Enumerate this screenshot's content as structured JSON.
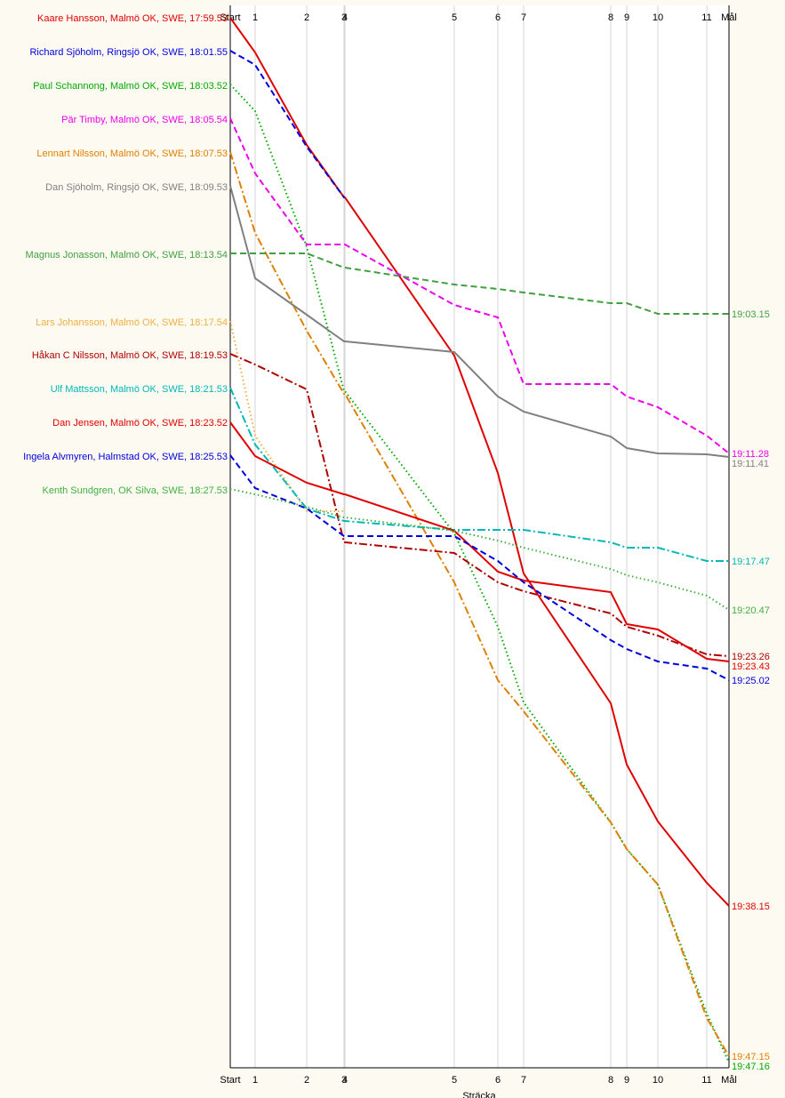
{
  "chart_data": {
    "type": "line",
    "xlabel": "Sträcka",
    "x_ticks": [
      "Start",
      "1",
      "2",
      "3",
      "4",
      "5",
      "6",
      "7",
      "8",
      "9",
      "10",
      "11",
      "Mål"
    ],
    "grid": "vertical",
    "legend": "left",
    "series": [
      {
        "name": "Kaare Hansson, Malmö OK, SWE, 17:59.53",
        "color": "#e00000",
        "dash": "solid",
        "end_label": "19:38.15",
        "y": [
          20,
          59,
          163,
          222,
          222,
          400,
          532,
          645,
          791,
          860,
          924,
          993,
          1019
        ]
      },
      {
        "name": "Richard Sjöholm, Ringsjö OK, SWE, 18:01.55",
        "color": "#0000dd",
        "dash": "dashed",
        "end_label": "",
        "y": [
          57,
          73,
          165,
          222,
          222,
          null,
          null,
          null,
          null,
          null,
          null,
          null,
          null
        ]
      },
      {
        "name": "Paul Schannong, Malmö OK, SWE, 18:03.52",
        "color": "#00aa00",
        "dash": "dotted",
        "end_label": "19:47.16",
        "y": [
          95,
          125,
          278,
          440,
          440,
          600,
          705,
          790,
          925,
          955,
          995,
          1140,
          1195
        ]
      },
      {
        "name": "Pär Timby, Malmö OK, SWE, 18:05.54",
        "color": "#ee00ee",
        "dash": "dashed",
        "end_label": "19:11.28",
        "y": [
          133,
          195,
          275,
          275,
          275,
          343,
          357,
          432,
          432,
          446,
          458,
          490,
          510
        ]
      },
      {
        "name": "Lennart Nilsson, Malmö OK, SWE, 18:07.53",
        "color": "#e08000",
        "dash": "dashdot",
        "end_label": "19:47.15",
        "y": [
          171,
          262,
          372,
          443,
          443,
          655,
          765,
          800,
          925,
          955,
          995,
          1145,
          1188
        ]
      },
      {
        "name": "Dan Sjöholm, Ringsjö OK, SWE, 18:09.53",
        "color": "#808080",
        "dash": "solid",
        "end_label": "19:11.41",
        "y": [
          209,
          313,
          354,
          384,
          384,
          396,
          446,
          463,
          491,
          504,
          510,
          511,
          514
        ]
      },
      {
        "name": "Magnus Jonasson, Malmö OK, SWE, 18:13.54",
        "color": "#40a040",
        "dash": "dashed",
        "end_label": "19:03.15",
        "y": [
          285,
          285,
          285,
          301,
          301,
          320,
          325,
          329,
          341,
          341,
          353,
          353,
          353
        ]
      },
      {
        "name": "Lars Johansson, Malmö OK, SWE, 18:17.54",
        "color": "#f0b040",
        "dash": "dotted",
        "end_label": "",
        "y": [
          361,
          490,
          575,
          575,
          575,
          null,
          null,
          null,
          null,
          null,
          null,
          null,
          null
        ]
      },
      {
        "name": "Håkan C Nilsson, Malmö OK, SWE, 18:19.53",
        "color": "#b00000",
        "dash": "dashdot",
        "end_label": "19:23.26",
        "y": [
          398,
          410,
          438,
          610,
          610,
          622,
          655,
          665,
          690,
          705,
          715,
          736,
          738
        ]
      },
      {
        "name": "Ulf Mattsson, Malmö OK, SWE, 18:21.53",
        "color": "#00b8b8",
        "dash": "dashdot",
        "end_label": "19:17.47",
        "y": [
          436,
          500,
          572,
          586,
          586,
          596,
          596,
          596,
          610,
          616,
          616,
          631,
          631
        ]
      },
      {
        "name": "Dan Jensen, Malmö OK, SWE, 18:23.52",
        "color": "#e00000",
        "dash": "solid",
        "end_label": "19:23.43",
        "y": [
          475,
          513,
          543,
          556,
          556,
          597,
          643,
          653,
          666,
          702,
          708,
          741,
          744
        ]
      },
      {
        "name": "Ingela Alvmyren, Halmstad OK, SWE, 18:25.53",
        "color": "#0000dd",
        "dash": "dashed",
        "end_label": "19:25.02",
        "y": [
          512,
          549,
          572,
          603,
          603,
          603,
          631,
          655,
          720,
          730,
          744,
          752,
          765
        ]
      },
      {
        "name": "Kenth Sundgren, OK Silva, SWE, 18:27.53",
        "color": "#40b040",
        "dash": "dotted",
        "end_label": "19:20.47",
        "y": [
          550,
          556,
          570,
          582,
          582,
          597,
          608,
          616,
          640,
          647,
          655,
          670,
          686
        ]
      }
    ]
  }
}
